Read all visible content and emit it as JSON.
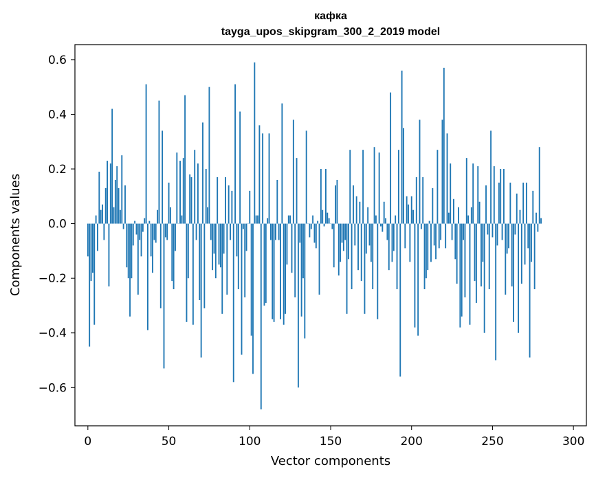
{
  "chart_data": {
    "type": "bar",
    "title": "кафка",
    "subtitle": "tayga_upos_skipgram_300_2_2019 model",
    "xlabel": "Vector components",
    "ylabel": "Components values",
    "xlim": [
      -8,
      308
    ],
    "ylim": [
      -0.74,
      0.655
    ],
    "x_ticks": [
      0,
      50,
      100,
      150,
      200,
      250,
      300
    ],
    "x_tick_labels": [
      "0",
      "50",
      "100",
      "150",
      "200",
      "250",
      "300"
    ],
    "y_ticks": [
      0.6,
      0.4,
      0.2,
      0.0,
      -0.2,
      -0.4,
      -0.6
    ],
    "y_tick_labels": [
      "0.6",
      "0.4",
      "0.2",
      "0.0",
      "−0.2",
      "−0.4",
      "−0.6"
    ],
    "grid": false,
    "bar_color": "#1f77b4",
    "series": [
      {
        "values": [
          -0.12,
          -0.45,
          -0.21,
          -0.18,
          -0.37,
          0.03,
          -0.1,
          0.19,
          0.05,
          0.07,
          -0.06,
          0.13,
          0.23,
          -0.23,
          0.22,
          0.42,
          0.06,
          0.16,
          0.21,
          0.13,
          0.05,
          0.25,
          -0.02,
          0.14,
          -0.16,
          -0.2,
          -0.34,
          -0.2,
          -0.08,
          0.01,
          -0.04,
          -0.26,
          -0.06,
          -0.12,
          -0.03,
          0.02,
          0.51,
          -0.39,
          0.01,
          -0.12,
          -0.18,
          -0.06,
          -0.07,
          0.05,
          0.45,
          -0.31,
          0.34,
          -0.53,
          -0.05,
          -0.06,
          0.15,
          0.06,
          -0.21,
          -0.24,
          -0.1,
          0.26,
          0.0,
          0.23,
          0.03,
          0.24,
          0.47,
          -0.36,
          -0.2,
          0.18,
          0.17,
          -0.37,
          0.27,
          -0.06,
          0.22,
          -0.28,
          -0.49,
          0.37,
          -0.31,
          0.2,
          0.06,
          0.5,
          -0.06,
          -0.17,
          -0.11,
          -0.2,
          0.17,
          -0.15,
          -0.16,
          -0.33,
          -0.11,
          0.17,
          -0.26,
          0.14,
          -0.06,
          0.12,
          -0.58,
          0.51,
          -0.12,
          -0.24,
          0.41,
          -0.48,
          -0.02,
          -0.27,
          -0.1,
          0.0,
          0.12,
          -0.41,
          -0.55,
          0.59,
          0.03,
          0.03,
          0.36,
          -0.68,
          0.33,
          -0.3,
          -0.29,
          0.02,
          0.33,
          -0.06,
          -0.35,
          -0.36,
          -0.06,
          0.16,
          -0.06,
          -0.35,
          0.44,
          -0.37,
          -0.33,
          -0.15,
          0.03,
          0.03,
          -0.18,
          0.38,
          -0.27,
          0.24,
          -0.6,
          -0.07,
          -0.34,
          -0.2,
          -0.42,
          0.34,
          0.0,
          -0.05,
          -0.02,
          0.03,
          -0.07,
          -0.09,
          0.01,
          -0.26,
          0.2,
          0.05,
          -0.01,
          0.2,
          0.04,
          0.02,
          0.0,
          -0.02,
          -0.16,
          0.14,
          0.16,
          -0.19,
          -0.14,
          -0.07,
          -0.1,
          -0.06,
          -0.33,
          -0.13,
          0.27,
          -0.24,
          0.14,
          -0.08,
          0.1,
          -0.17,
          0.08,
          -0.21,
          0.27,
          -0.33,
          -0.11,
          0.06,
          -0.08,
          -0.14,
          -0.24,
          0.28,
          0.03,
          -0.35,
          0.26,
          -0.01,
          -0.03,
          0.08,
          0.02,
          -0.06,
          -0.17,
          0.48,
          -0.14,
          -0.1,
          0.03,
          -0.24,
          0.27,
          -0.56,
          0.56,
          0.35,
          -0.09,
          0.1,
          0.07,
          -0.14,
          0.1,
          0.05,
          -0.38,
          0.17,
          -0.41,
          0.38,
          -0.02,
          0.17,
          -0.24,
          -0.2,
          -0.17,
          0.01,
          -0.14,
          0.13,
          -0.08,
          -0.13,
          0.27,
          -0.09,
          -0.06,
          0.38,
          0.57,
          -0.09,
          0.33,
          0.04,
          0.22,
          -0.06,
          0.09,
          -0.13,
          -0.22,
          0.06,
          -0.38,
          -0.34,
          -0.06,
          -0.27,
          0.24,
          0.03,
          -0.37,
          0.06,
          0.22,
          -0.21,
          -0.29,
          0.21,
          0.08,
          -0.23,
          -0.14,
          -0.4,
          0.14,
          -0.04,
          -0.24,
          0.34,
          -0.05,
          0.21,
          -0.5,
          -0.08,
          0.15,
          0.2,
          -0.06,
          0.2,
          -0.26,
          -0.11,
          -0.09,
          0.15,
          -0.23,
          -0.36,
          -0.04,
          0.11,
          -0.4,
          0.05,
          -0.22,
          0.15,
          -0.15,
          0.15,
          -0.09,
          -0.49,
          -0.14,
          0.12,
          -0.24,
          0.04,
          -0.03,
          0.28,
          0.02
        ]
      }
    ]
  }
}
